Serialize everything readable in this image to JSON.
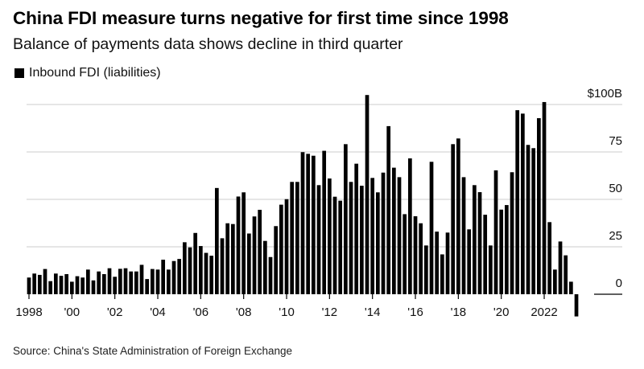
{
  "chart_data": {
    "type": "bar",
    "title": "China FDI measure turns negative for first time since 1998",
    "subtitle": "Balance of payments data shows decline in third quarter",
    "legend": [
      {
        "name": "Inbound FDI (liabilities)",
        "color": "#000000"
      }
    ],
    "legend_position": "top-left",
    "source": "Source: China's State Administration of Foreign Exchange",
    "frequency": "quarterly",
    "x_start": "1998 Q1",
    "x_end": "2023 Q3",
    "x_tick_labels": [
      "1998",
      "'00",
      "'02",
      "'04",
      "'06",
      "'08",
      "'10",
      "'12",
      "'14",
      "'16",
      "'18",
      "'20",
      "2022"
    ],
    "y_tick_labels": [
      "0",
      "25",
      "50",
      "75",
      "$100B"
    ],
    "y_ticks": [
      0,
      25,
      50,
      75,
      100
    ],
    "ylim": [
      -12,
      105
    ],
    "grid": true,
    "series": [
      {
        "name": "Inbound FDI (liabilities)",
        "color": "#000000",
        "values": [
          8.8,
          10.9,
          10.2,
          13.3,
          6.9,
          10.9,
          9.7,
          10.6,
          6.6,
          9.5,
          8.8,
          13.0,
          7.3,
          12.0,
          10.6,
          13.7,
          9.2,
          13.4,
          13.7,
          12.0,
          12.0,
          15.5,
          8.0,
          13.3,
          13.0,
          18.2,
          13.0,
          17.5,
          18.6,
          27.4,
          24.7,
          32.3,
          25.4,
          21.8,
          20.3,
          56.0,
          29.5,
          37.4,
          37.0,
          51.5,
          53.7,
          32.0,
          41.0,
          44.5,
          28.1,
          19.6,
          35.9,
          47.2,
          50.1,
          59.2,
          59.2,
          74.9,
          74.0,
          73.0,
          57.5,
          75.6,
          61.0,
          51.4,
          49.3,
          79.1,
          59.2,
          68.8,
          57.2,
          105.0,
          61.3,
          53.7,
          64.1,
          88.6,
          66.7,
          61.7,
          42.2,
          71.6,
          41.1,
          37.4,
          25.7,
          69.8,
          33.0,
          21.0,
          32.5,
          79.1,
          82.1,
          61.7,
          34.2,
          57.5,
          53.8,
          41.9,
          25.7,
          65.3,
          44.6,
          47.0,
          64.3,
          97.0,
          95.2,
          78.7,
          77.0,
          92.8,
          101.3,
          38.0,
          13.0,
          27.8,
          20.5,
          6.6,
          -11.7
        ]
      }
    ]
  }
}
